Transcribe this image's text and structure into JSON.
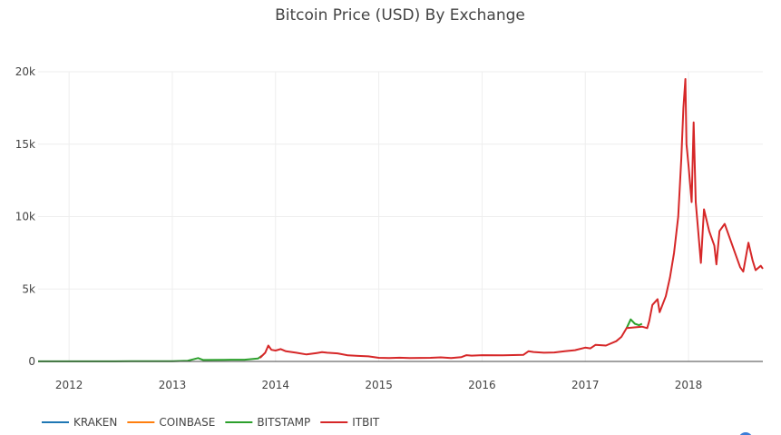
{
  "chart_data": {
    "type": "line",
    "title": "Bitcoin Price (USD) By Exchange",
    "xlabel": "",
    "ylabel": "",
    "x_ticks": [
      "2012",
      "2013",
      "2014",
      "2015",
      "2016",
      "2017",
      "2018"
    ],
    "y_ticks": [
      "0",
      "5k",
      "10k",
      "15k",
      "20k"
    ],
    "xlim": [
      2011.7,
      2018.72
    ],
    "ylim": [
      0,
      20000
    ],
    "grid": true,
    "legend_position": "bottom-left",
    "series": [
      {
        "name": "KRAKEN",
        "color": "#1f77b4",
        "points": []
      },
      {
        "name": "COINBASE",
        "color": "#ff7f0e",
        "points": []
      },
      {
        "name": "BITSTAMP",
        "color": "#2ca02c",
        "points": [
          [
            2011.7,
            5
          ],
          [
            2012.0,
            6
          ],
          [
            2012.3,
            5
          ],
          [
            2012.6,
            10
          ],
          [
            2012.9,
            12
          ],
          [
            2013.0,
            13
          ],
          [
            2013.15,
            50
          ],
          [
            2013.25,
            230
          ],
          [
            2013.3,
            100
          ],
          [
            2013.5,
            110
          ],
          [
            2013.7,
            120
          ],
          [
            2013.83,
            200
          ],
          [
            2013.87,
            400
          ],
          [
            2017.4,
            2300
          ],
          [
            2017.44,
            2900
          ],
          [
            2017.48,
            2600
          ],
          [
            2017.52,
            2500
          ],
          [
            2017.55,
            2600
          ]
        ]
      },
      {
        "name": "ITBIT",
        "color": "#d62728",
        "points": [
          [
            2013.85,
            250
          ],
          [
            2013.9,
            600
          ],
          [
            2013.93,
            1100
          ],
          [
            2013.96,
            800
          ],
          [
            2014.0,
            750
          ],
          [
            2014.05,
            850
          ],
          [
            2014.1,
            700
          ],
          [
            2014.2,
            600
          ],
          [
            2014.3,
            480
          ],
          [
            2014.4,
            580
          ],
          [
            2014.45,
            640
          ],
          [
            2014.5,
            600
          ],
          [
            2014.6,
            560
          ],
          [
            2014.7,
            420
          ],
          [
            2014.8,
            380
          ],
          [
            2014.9,
            350
          ],
          [
            2015.0,
            250
          ],
          [
            2015.1,
            230
          ],
          [
            2015.2,
            260
          ],
          [
            2015.3,
            240
          ],
          [
            2015.5,
            250
          ],
          [
            2015.6,
            280
          ],
          [
            2015.7,
            240
          ],
          [
            2015.8,
            300
          ],
          [
            2015.85,
            430
          ],
          [
            2015.9,
            400
          ],
          [
            2016.0,
            430
          ],
          [
            2016.2,
            420
          ],
          [
            2016.4,
            450
          ],
          [
            2016.45,
            700
          ],
          [
            2016.5,
            650
          ],
          [
            2016.6,
            600
          ],
          [
            2016.7,
            620
          ],
          [
            2016.8,
            700
          ],
          [
            2016.9,
            780
          ],
          [
            2017.0,
            950
          ],
          [
            2017.05,
            900
          ],
          [
            2017.1,
            1150
          ],
          [
            2017.2,
            1100
          ],
          [
            2017.3,
            1400
          ],
          [
            2017.35,
            1700
          ],
          [
            2017.4,
            2300
          ],
          [
            2017.55,
            2400
          ],
          [
            2017.6,
            2300
          ],
          [
            2017.62,
            2800
          ],
          [
            2017.65,
            3900
          ],
          [
            2017.7,
            4300
          ],
          [
            2017.72,
            3400
          ],
          [
            2017.78,
            4500
          ],
          [
            2017.82,
            5800
          ],
          [
            2017.86,
            7500
          ],
          [
            2017.9,
            10000
          ],
          [
            2017.93,
            14000
          ],
          [
            2017.95,
            17500
          ],
          [
            2017.97,
            19500
          ],
          [
            2017.98,
            15000
          ],
          [
            2018.0,
            13500
          ],
          [
            2018.03,
            11000
          ],
          [
            2018.05,
            16500
          ],
          [
            2018.07,
            11000
          ],
          [
            2018.1,
            8500
          ],
          [
            2018.12,
            6800
          ],
          [
            2018.15,
            10500
          ],
          [
            2018.2,
            9000
          ],
          [
            2018.25,
            8000
          ],
          [
            2018.27,
            6700
          ],
          [
            2018.3,
            9000
          ],
          [
            2018.35,
            9500
          ],
          [
            2018.4,
            8500
          ],
          [
            2018.45,
            7500
          ],
          [
            2018.5,
            6500
          ],
          [
            2018.53,
            6200
          ],
          [
            2018.58,
            8200
          ],
          [
            2018.62,
            7000
          ],
          [
            2018.65,
            6300
          ],
          [
            2018.7,
            6600
          ],
          [
            2018.72,
            6400
          ]
        ]
      }
    ]
  }
}
